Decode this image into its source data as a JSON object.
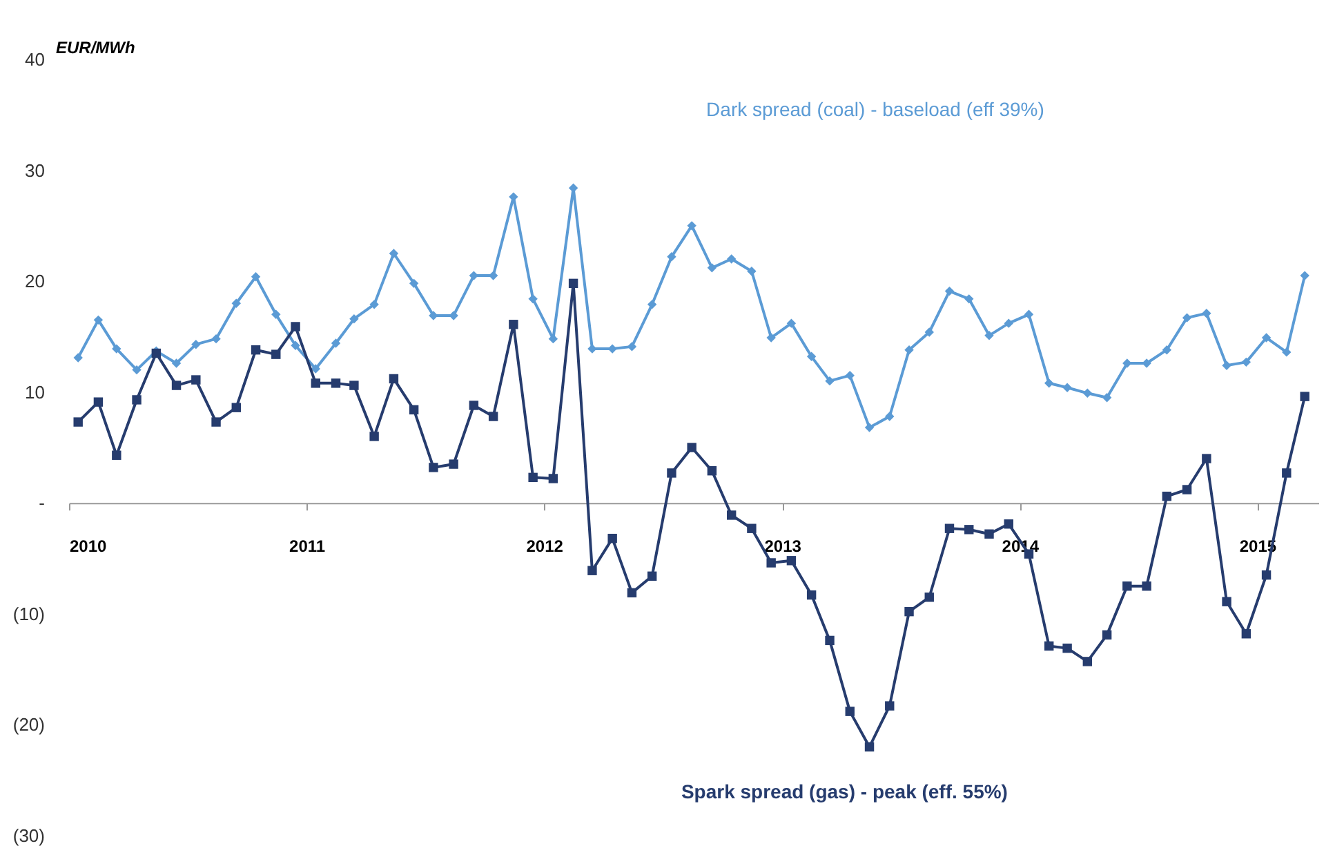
{
  "chart_data": {
    "type": "line",
    "ylabel": "EUR/MWh",
    "x": [
      "2010-01-15",
      "2010-02-15",
      "2010-03-15",
      "2010-04-15",
      "2010-05-15",
      "2010-06-15",
      "2010-07-15",
      "2010-08-15",
      "2010-09-15",
      "2010-10-15",
      "2010-11-15",
      "2010-12-15",
      "2011-01-15",
      "2011-02-15",
      "2011-03-15",
      "2011-04-15",
      "2011-05-15",
      "2011-06-15",
      "2011-07-15",
      "2011-08-15",
      "2011-09-15",
      "2011-10-15",
      "2011-11-15",
      "2011-12-15",
      "2012-01-15",
      "2012-02-15",
      "2012-03-15",
      "2012-04-15",
      "2012-05-15",
      "2012-06-15",
      "2012-07-15",
      "2012-08-15",
      "2012-09-15",
      "2012-10-15",
      "2012-11-15",
      "2012-12-15",
      "2013-01-15",
      "2013-02-15",
      "2013-03-15",
      "2013-04-15",
      "2013-05-15",
      "2013-06-15",
      "2013-07-15",
      "2013-08-15",
      "2013-09-15",
      "2013-10-15",
      "2013-11-15",
      "2013-12-15",
      "2014-01-15",
      "2014-02-15",
      "2014-03-15",
      "2014-04-15",
      "2014-05-15",
      "2014-06-15",
      "2014-07-15",
      "2014-08-15",
      "2014-09-15",
      "2014-10-15",
      "2014-11-15",
      "2014-12-15",
      "2015-01-15",
      "2015-02-15",
      "2015-03-15"
    ],
    "series": [
      {
        "name": "Dark spread (coal) - baseload (eff 39%)",
        "color": "#5b9bd5",
        "marker": "diamond",
        "values": [
          13.1,
          16.5,
          13.9,
          12.0,
          13.7,
          12.6,
          14.3,
          14.8,
          18.0,
          20.4,
          17.0,
          14.2,
          12.1,
          14.4,
          16.6,
          17.9,
          22.5,
          19.8,
          16.9,
          16.9,
          20.5,
          20.5,
          27.6,
          18.4,
          14.8,
          28.4,
          13.9,
          13.9,
          14.1,
          17.9,
          22.2,
          25.0,
          21.2,
          22.0,
          20.9,
          14.9,
          16.2,
          13.2,
          11.0,
          11.5,
          6.8,
          7.8,
          13.8,
          15.4,
          19.1,
          18.4,
          15.1,
          16.2,
          17.0,
          10.8,
          10.4,
          9.9,
          9.5,
          12.6,
          12.6,
          13.8,
          16.7,
          17.1,
          12.4,
          12.7,
          14.9,
          13.6,
          20.5
        ]
      },
      {
        "name": "Spark spread (gas) - peak (eff. 55%)",
        "color": "#263c6e",
        "marker": "square",
        "values": [
          7.3,
          9.1,
          4.3,
          9.3,
          13.5,
          10.6,
          11.1,
          7.3,
          8.6,
          13.8,
          13.4,
          15.9,
          10.8,
          10.8,
          10.6,
          6.0,
          11.2,
          8.4,
          3.2,
          3.5,
          8.8,
          7.8,
          16.1,
          2.3,
          2.2,
          19.8,
          -6.1,
          -3.2,
          -8.1,
          -6.6,
          2.7,
          5.0,
          2.9,
          -1.1,
          -2.3,
          -5.4,
          -5.2,
          -8.3,
          -12.4,
          -18.8,
          -22.0,
          -18.3,
          -9.8,
          -8.5,
          -2.3,
          -2.4,
          -2.8,
          -1.9,
          -4.6,
          -12.9,
          -13.1,
          -14.3,
          -11.9,
          -7.5,
          -7.5,
          0.6,
          1.2,
          4.0,
          -8.9,
          -11.8,
          -6.5,
          2.7,
          9.6
        ]
      }
    ],
    "xlim": [
      "2010-01-01",
      "2015-04-05"
    ],
    "xticks": [
      {
        "value": "2010-01-01",
        "label": "2010"
      },
      {
        "value": "2011-01-01",
        "label": "2011"
      },
      {
        "value": "2012-01-01",
        "label": "2012"
      },
      {
        "value": "2013-01-01",
        "label": "2013"
      },
      {
        "value": "2014-01-01",
        "label": "2014"
      },
      {
        "value": "2015-01-01",
        "label": "2015"
      }
    ],
    "ylim": [
      -30,
      40
    ],
    "yticks": [
      {
        "value": -30,
        "label": "(30)"
      },
      {
        "value": -20,
        "label": "(20)"
      },
      {
        "value": -10,
        "label": "(10)"
      },
      {
        "value": 0,
        "label": "-"
      },
      10,
      20,
      30,
      40
    ],
    "line_style": "solid",
    "grid": false
  }
}
